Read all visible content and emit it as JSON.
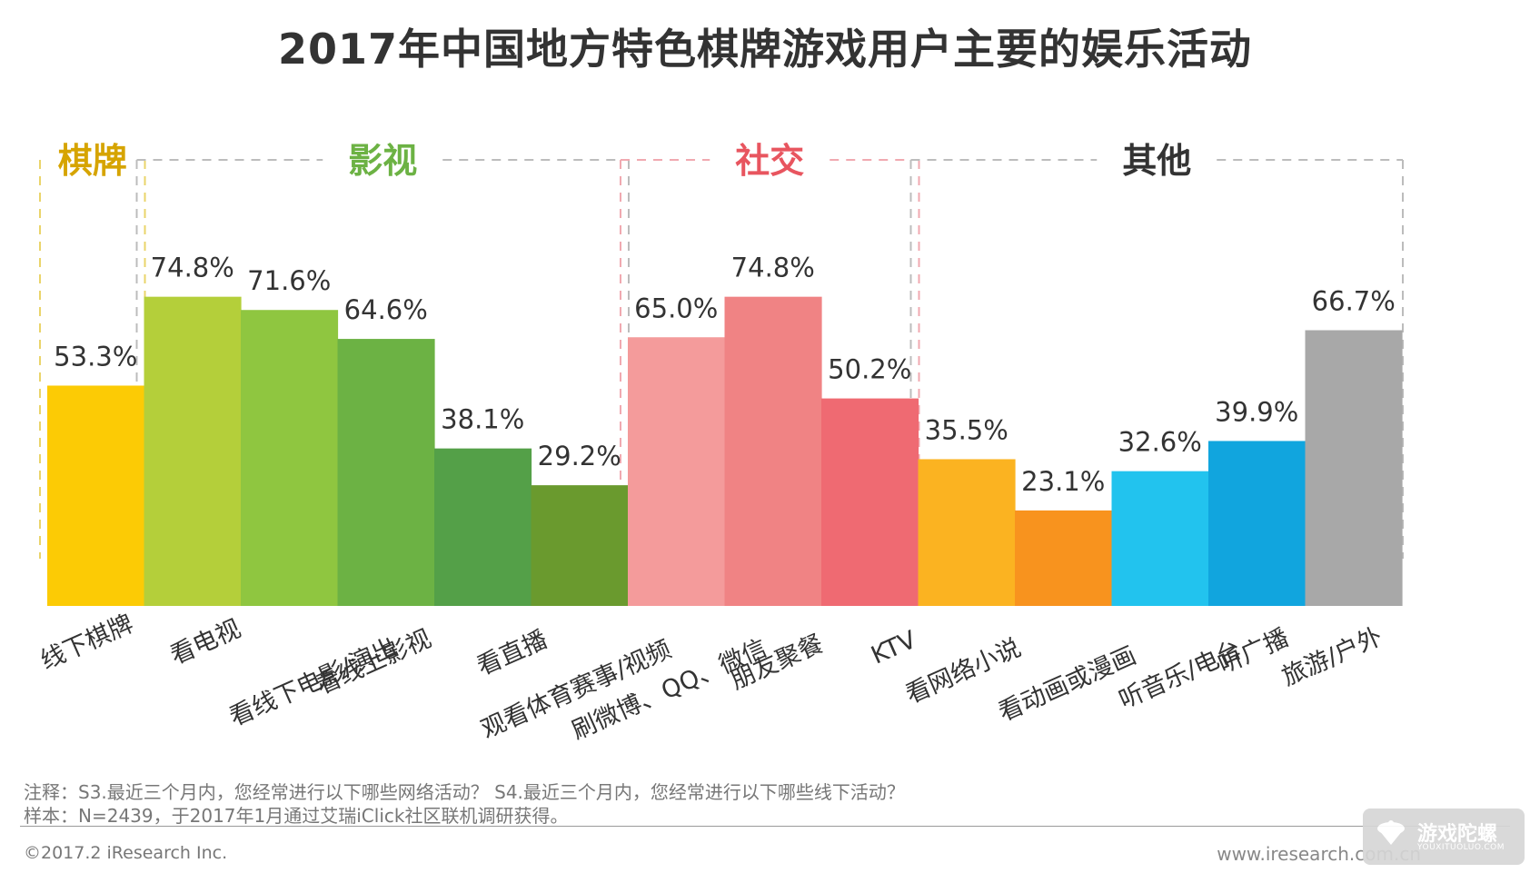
{
  "chart_data": {
    "type": "bar",
    "title": "2017年中国地方特色棋牌游戏用户主要的娱乐活动",
    "categories": [
      "线下棋牌",
      "看电视",
      "看线下电影/演出",
      "看线上影视",
      "看直播",
      "观看体育赛事/视频",
      "刷微博、QQ、微信",
      "朋友聚餐",
      "KTV",
      "看网络小说",
      "看动画或漫画",
      "听音乐/电台",
      "听广播",
      "旅游/户外"
    ],
    "values": [
      53.3,
      74.8,
      71.6,
      64.6,
      38.1,
      29.2,
      65.0,
      74.8,
      50.2,
      35.5,
      23.1,
      32.6,
      39.9,
      66.7
    ],
    "value_labels": [
      "53.3%",
      "74.8%",
      "71.6%",
      "64.6%",
      "38.1%",
      "29.2%",
      "65.0%",
      "74.8%",
      "50.2%",
      "35.5%",
      "23.1%",
      "32.6%",
      "39.9%",
      "66.7%"
    ],
    "bar_colors": [
      "#fccb05",
      "#b4cf3a",
      "#8fc640",
      "#6cb244",
      "#54a048",
      "#6a9a2e",
      "#f49b9b",
      "#f08384",
      "#ef6a72",
      "#fbb321",
      "#f8931e",
      "#22c3ee",
      "#11a5de",
      "#a8a8a8"
    ],
    "groups": [
      {
        "name": "棋牌",
        "color": "#d6a400",
        "border_color": "#ead46a"
      },
      {
        "name": "影视",
        "color": "#6cb244",
        "border_color": "#bcbcbc"
      },
      {
        "name": "社交",
        "color": "#e8555f",
        "border_color": "#f0a9b0"
      },
      {
        "name": "其他",
        "color": "#333333",
        "border_color": "#bcbcbc"
      }
    ],
    "ylim": [
      0,
      100
    ],
    "grid": false,
    "xlabel": "",
    "ylabel": ""
  },
  "notes": {
    "line1": "注释：S3.最近三个月内，您经常进行以下哪些网络活动？ S4.最近三个月内，您经常进行以下哪些线下活动？",
    "line2": "样本：N=2439，于2017年1月通过艾瑞iClick社区联机调研获得。"
  },
  "footer": {
    "copyright": "©2017.2 iResearch Inc.",
    "site": "www.iresearch.com.cn"
  },
  "watermark": {
    "text": "游戏陀螺",
    "sub": "YOUXITUOLUO.COM",
    "icon": "gyro-logo-icon"
  }
}
